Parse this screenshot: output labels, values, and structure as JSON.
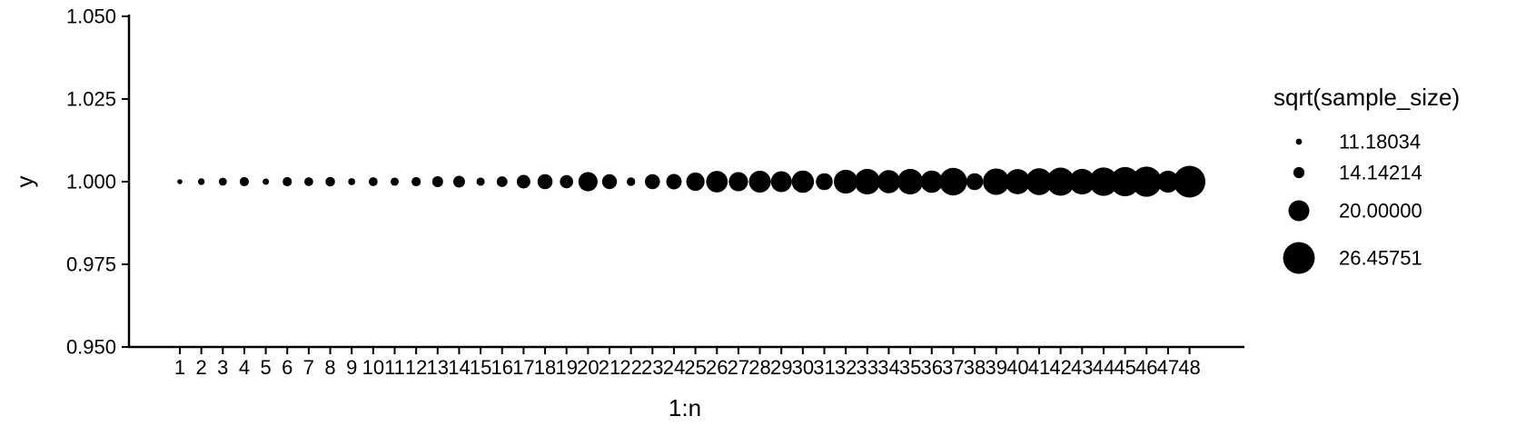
{
  "chart_data": {
    "type": "scatter",
    "xlabel": "1:n",
    "ylabel": "y",
    "x": [
      "1",
      "2",
      "3",
      "4",
      "5",
      "6",
      "7",
      "8",
      "9",
      "10",
      "11",
      "12",
      "13",
      "14",
      "15",
      "16",
      "17",
      "18",
      "19",
      "20",
      "21",
      "22",
      "23",
      "24",
      "25",
      "26",
      "27",
      "28",
      "29",
      "30",
      "31",
      "32",
      "33",
      "34",
      "35",
      "36",
      "37",
      "38",
      "39",
      "40",
      "41",
      "42",
      "43",
      "44",
      "45",
      "46",
      "47",
      "48"
    ],
    "y": [
      1,
      1,
      1,
      1,
      1,
      1,
      1,
      1,
      1,
      1,
      1,
      1,
      1,
      1,
      1,
      1,
      1,
      1,
      1,
      1,
      1,
      1,
      1,
      1,
      1,
      1,
      1,
      1,
      1,
      1,
      1,
      1,
      1,
      1,
      1,
      1,
      1,
      1,
      1,
      1,
      1,
      1,
      1,
      1,
      1,
      1,
      1,
      1
    ],
    "size": [
      10.5,
      11.5,
      12.3,
      13.0,
      11.3,
      13.0,
      12.8,
      13.2,
      11.7,
      12.8,
      12.4,
      13.0,
      14.0,
      14.5,
      12.4,
      13.9,
      15.6,
      16.5,
      15.4,
      19.0,
      16.4,
      12.6,
      16.5,
      16.7,
      18.5,
      20.4,
      19.0,
      20.6,
      20.0,
      20.8,
      17.6,
      21.8,
      22.8,
      21.3,
      22.8,
      20.8,
      24.0,
      17.6,
      23.3,
      22.5,
      23.5,
      24.3,
      22.8,
      24.5,
      25.0,
      25.5,
      20.6,
      26.5
    ],
    "size_title": "sqrt(sample_size)",
    "legend": {
      "labels": [
        "11.18034",
        "14.14214",
        "20.00000",
        "26.45751"
      ],
      "values": [
        11.18034,
        14.14214,
        20.0,
        26.45751
      ],
      "placement": "right"
    },
    "y_ticks": [
      "0.950",
      "0.975",
      "1.000",
      "1.025",
      "1.050"
    ],
    "y_tick_values": [
      0.95,
      0.975,
      1.0,
      1.025,
      1.05
    ],
    "ylim": [
      0.95,
      1.05
    ],
    "grid": false,
    "color": "#000000"
  }
}
